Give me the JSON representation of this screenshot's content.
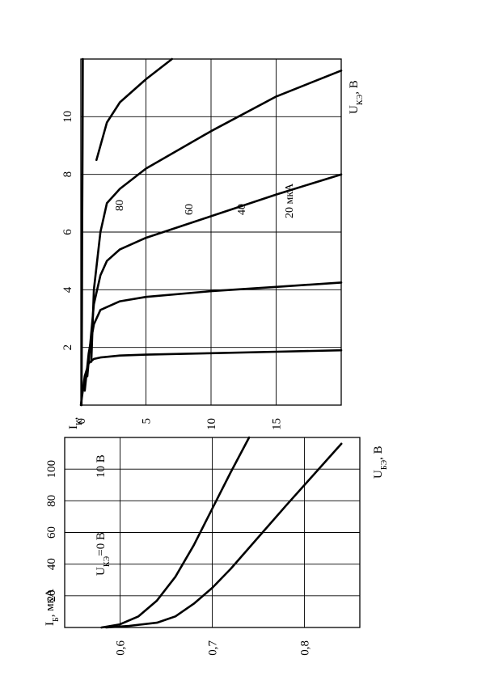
{
  "chart_data": [
    {
      "type": "line",
      "xlabel_main": "U",
      "xlabel_sub": "БЭ",
      "xlabel_unit": ", В",
      "ylabel_main": "I",
      "ylabel_sub": "Б",
      "ylabel_unit": ", мкА",
      "xlim": [
        0.54,
        0.86
      ],
      "ylim": [
        0,
        120
      ],
      "xticks": [
        0.6,
        0.7,
        0.8
      ],
      "xtick_labels": [
        "0,6",
        "0,7",
        "0,8"
      ],
      "yticks": [
        20,
        40,
        60,
        80,
        100
      ],
      "ytick_labels": [
        "20",
        "40",
        "60",
        "80",
        "100"
      ],
      "grid": true,
      "series": [
        {
          "name_main": "U",
          "name_sub": "КЭ",
          "name_tail": "=0 В",
          "x": [
            0.58,
            0.6,
            0.62,
            0.64,
            0.66,
            0.68,
            0.7,
            0.72,
            0.74
          ],
          "y": [
            0,
            2,
            7,
            17,
            32,
            52,
            75,
            98,
            120
          ]
        },
        {
          "name_main": "10 В",
          "name_sub": "",
          "name_tail": "",
          "x": [
            0.585,
            0.61,
            0.64,
            0.66,
            0.68,
            0.7,
            0.72,
            0.75,
            0.78,
            0.82,
            0.84
          ],
          "y": [
            0,
            1,
            3,
            7,
            15,
            25,
            37,
            57,
            77,
            103,
            116
          ]
        }
      ]
    },
    {
      "type": "line",
      "xlabel_main": "U",
      "xlabel_sub": "КЭ",
      "xlabel_unit": ", В",
      "ylabel_main": "I",
      "ylabel_sub": "К",
      "ylabel_unit": ",",
      "xlim": [
        0,
        20
      ],
      "ylim": [
        0,
        12
      ],
      "xticks": [
        0,
        5,
        10,
        15
      ],
      "xtick_labels": [
        "0",
        "5",
        "10",
        "15"
      ],
      "yticks": [
        2,
        4,
        6,
        8,
        10
      ],
      "ytick_labels": [
        "2",
        "4",
        "6",
        "8",
        "10"
      ],
      "grid": true,
      "series": [
        {
          "name": "",
          "x": [
            0.05,
            0.08,
            0.1,
            0.13,
            0.15
          ],
          "y": [
            0,
            3,
            6,
            9,
            12
          ]
        },
        {
          "name": "20 мкА",
          "x": [
            0,
            0.15,
            0.3,
            0.6,
            1,
            1.5,
            3,
            5,
            10,
            15,
            20
          ],
          "y": [
            0,
            0.5,
            1.0,
            1.45,
            1.6,
            1.65,
            1.72,
            1.75,
            1.8,
            1.85,
            1.9
          ]
        },
        {
          "name": "40",
          "x": [
            0.3,
            0.6,
            1,
            1.5,
            3,
            5,
            10,
            15,
            20
          ],
          "y": [
            0.5,
            1.8,
            2.8,
            3.3,
            3.6,
            3.75,
            3.95,
            4.1,
            4.25
          ]
        },
        {
          "name": "60",
          "x": [
            0.5,
            1,
            1.5,
            2,
            3,
            5,
            10,
            15,
            20
          ],
          "y": [
            1,
            3.5,
            4.5,
            5,
            5.4,
            5.8,
            6.55,
            7.3,
            8.0
          ]
        },
        {
          "name": "80",
          "x": [
            0.8,
            1,
            1.5,
            2,
            3,
            5,
            10,
            15,
            20
          ],
          "y": [
            1.5,
            4,
            6,
            7,
            7.5,
            8.2,
            9.5,
            10.7,
            11.6
          ]
        },
        {
          "name": "",
          "x": [
            1.2,
            2,
            3,
            5,
            7
          ],
          "y": [
            8.5,
            9.8,
            10.5,
            11.3,
            12
          ]
        }
      ]
    }
  ]
}
